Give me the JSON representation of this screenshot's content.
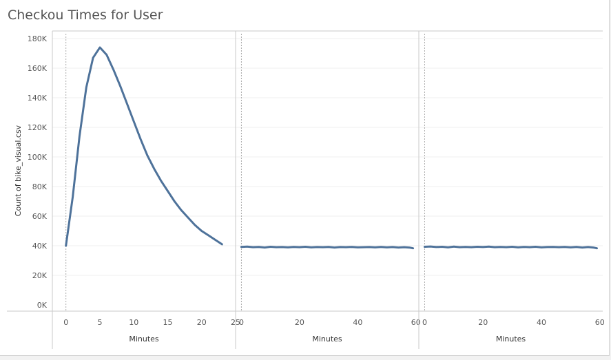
{
  "title": "Checkou Times for User",
  "colors": {
    "line": "#4e729a",
    "axis": "#c8c8c8",
    "grid": "#efefef",
    "text": "#555555"
  },
  "chart_data": {
    "type": "line",
    "title": "Checkou Times for User",
    "ylabel": "Count of bike_visual.csv",
    "ylim": [
      0,
      180000
    ],
    "yticks": [
      0,
      20000,
      40000,
      60000,
      80000,
      100000,
      120000,
      140000,
      160000,
      180000
    ],
    "ytick_labels": [
      "0K",
      "20K",
      "40K",
      "60K",
      "80K",
      "100K",
      "120K",
      "140K",
      "160K",
      "180K"
    ],
    "grid": true,
    "panels": [
      {
        "xlabel": "Minutes",
        "xlim": [
          -2,
          25
        ],
        "xticks": [
          0,
          5,
          10,
          15,
          20,
          25
        ],
        "x": [
          0,
          1,
          2,
          3,
          4,
          5,
          6,
          7,
          8,
          9,
          10,
          11,
          12,
          13,
          14,
          15,
          16,
          17,
          18,
          19,
          20,
          21,
          22,
          23
        ],
        "values": [
          40000,
          73000,
          114000,
          147000,
          167000,
          174000,
          169000,
          159000,
          148000,
          136000,
          124000,
          112000,
          101000,
          92000,
          84000,
          77000,
          70000,
          64000,
          59000,
          54000,
          50000,
          47000,
          44000,
          41000
        ]
      },
      {
        "xlabel": "Minutes",
        "xlim": [
          -2,
          61
        ],
        "xticks": [
          0,
          20,
          40,
          60
        ],
        "x": [
          0,
          2,
          4,
          6,
          8,
          10,
          12,
          14,
          16,
          18,
          20,
          22,
          24,
          26,
          28,
          30,
          32,
          34,
          36,
          38,
          40,
          42,
          44,
          46,
          48,
          50,
          52,
          54,
          56,
          58,
          59
        ],
        "values": [
          39200,
          39400,
          39000,
          39200,
          38800,
          39300,
          39000,
          39100,
          38900,
          39200,
          39000,
          39300,
          38900,
          39100,
          39000,
          39200,
          38800,
          39100,
          39000,
          39200,
          38900,
          39000,
          39100,
          38900,
          39200,
          38900,
          39100,
          38800,
          39000,
          38700,
          38300
        ]
      },
      {
        "xlabel": "Minutes",
        "xlim": [
          -2,
          61
        ],
        "xticks": [
          0,
          20,
          40,
          60
        ],
        "x": [
          0,
          2,
          4,
          6,
          8,
          10,
          12,
          14,
          16,
          18,
          20,
          22,
          24,
          26,
          28,
          30,
          32,
          34,
          36,
          38,
          40,
          42,
          44,
          46,
          48,
          50,
          52,
          54,
          56,
          58,
          59
        ],
        "values": [
          39300,
          39500,
          39100,
          39300,
          38900,
          39400,
          39000,
          39200,
          39000,
          39300,
          39100,
          39400,
          39000,
          39200,
          39000,
          39300,
          38900,
          39200,
          39000,
          39300,
          38900,
          39100,
          39200,
          39000,
          39200,
          38900,
          39200,
          38800,
          39100,
          38700,
          38300
        ]
      }
    ]
  }
}
